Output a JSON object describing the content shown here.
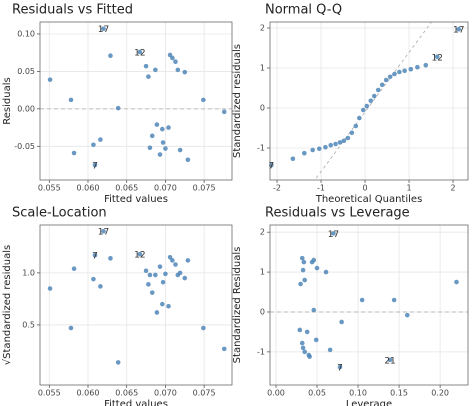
{
  "chart_data": [
    {
      "type": "scatter",
      "title": "Residuals vs Fitted",
      "x_label": "Fitted values",
      "y_label": "Residuals",
      "x": [
        0.0551,
        0.0578,
        0.0582,
        0.0607,
        0.062,
        0.0629,
        0.0639,
        0.0609,
        0.0667,
        0.0675,
        0.0678,
        0.0683,
        0.0687,
        0.0689,
        0.0693,
        0.0696,
        0.0697,
        0.07,
        0.0706,
        0.0709,
        0.0713,
        0.0716,
        0.0719,
        0.0725,
        0.0729,
        0.0749,
        0.0776,
        0.0616,
        0.068,
        0.0704
      ],
      "y": [
        0.039,
        0.012,
        -0.059,
        -0.048,
        0.107,
        0.071,
        0.001,
        -0.075,
        0.076,
        0.057,
        0.043,
        -0.036,
        0.052,
        -0.021,
        -0.061,
        -0.027,
        -0.045,
        -0.053,
        0.072,
        0.068,
        0.063,
        0.052,
        -0.055,
        0.049,
        -0.068,
        0.012,
        -0.004,
        -0.041,
        -0.052,
        -0.025
      ],
      "point_labels": [
        null,
        null,
        null,
        null,
        "17",
        null,
        null,
        "7",
        "12",
        null,
        null,
        null,
        null,
        null,
        null,
        null,
        null,
        null,
        null,
        null,
        null,
        null,
        null,
        null,
        null,
        null,
        null,
        null,
        null,
        null
      ],
      "xlim": [
        0.0538,
        0.0786
      ],
      "ylim": [
        -0.095,
        0.116
      ],
      "xticks": [
        0.055,
        {
          "value": 0.06,
          "label": "0.060"
        },
        0.065,
        {
          "value": 0.07,
          "label": "0.070"
        },
        0.075
      ],
      "yticks": [
        -0.05,
        {
          "value": 0,
          "label": "0.00"
        },
        0.05,
        {
          "value": 0.1,
          "label": "0.10"
        }
      ],
      "hline": 0,
      "color": "#4f86b8",
      "grid": true
    },
    {
      "type": "scatter",
      "title": "Normal Q-Q",
      "x_label": "Theoretical Quantiles",
      "y_label": "Standardized residuals",
      "x": [
        -2.13,
        -1.64,
        -1.38,
        -1.19,
        -1.04,
        -0.9,
        -0.78,
        -0.67,
        -0.57,
        -0.48,
        -0.39,
        -0.3,
        -0.21,
        -0.13,
        -0.04,
        0.04,
        0.13,
        0.21,
        0.3,
        0.39,
        0.48,
        0.57,
        0.67,
        0.78,
        0.9,
        1.04,
        1.19,
        1.38,
        1.64,
        2.13
      ],
      "y": [
        -1.43,
        -1.27,
        -1.13,
        -1.05,
        -1.02,
        -0.98,
        -0.93,
        -0.9,
        -0.86,
        -0.82,
        -0.75,
        -0.62,
        -0.45,
        -0.25,
        -0.05,
        0.05,
        0.18,
        0.3,
        0.45,
        0.58,
        0.7,
        0.78,
        0.85,
        0.9,
        0.93,
        0.97,
        1.02,
        1.07,
        1.28,
        1.97
      ],
      "point_labels": [
        "7",
        null,
        null,
        null,
        null,
        null,
        null,
        null,
        null,
        null,
        null,
        null,
        null,
        null,
        null,
        null,
        null,
        null,
        null,
        null,
        null,
        null,
        null,
        null,
        null,
        null,
        null,
        null,
        "12",
        "17"
      ],
      "xlim": [
        -2.16,
        2.34
      ],
      "ylim": [
        -1.8,
        2.15
      ],
      "xticks": [
        -2,
        -1,
        0,
        1,
        2
      ],
      "yticks": [
        -1,
        0,
        1,
        2
      ],
      "reference_line": {
        "slope": 1.49,
        "intercept": -0.1
      },
      "color": "#4f86b8",
      "grid": true
    },
    {
      "type": "scatter",
      "title": "Scale-Location",
      "x_label": "Fitted values",
      "y_label": "√Standardized residuals",
      "x": [
        0.0551,
        0.0578,
        0.0582,
        0.0607,
        0.062,
        0.0629,
        0.0639,
        0.0609,
        0.0667,
        0.0675,
        0.0678,
        0.0683,
        0.0687,
        0.0689,
        0.0693,
        0.0696,
        0.0697,
        0.07,
        0.0706,
        0.0709,
        0.0713,
        0.0716,
        0.0719,
        0.0725,
        0.0729,
        0.0749,
        0.0776,
        0.0616,
        0.068,
        0.0704
      ],
      "y": [
        0.85,
        0.47,
        1.04,
        0.94,
        1.4,
        1.14,
        0.14,
        1.17,
        1.18,
        1.02,
        0.89,
        0.81,
        0.98,
        0.62,
        1.06,
        0.7,
        0.91,
        0.99,
        1.15,
        1.12,
        1.08,
        0.98,
        1.0,
        0.95,
        1.12,
        0.47,
        0.27,
        0.87,
        0.98,
        0.68
      ],
      "point_labels": [
        null,
        null,
        null,
        null,
        "17",
        null,
        null,
        "7",
        "12",
        null,
        null,
        null,
        null,
        null,
        null,
        null,
        null,
        null,
        null,
        null,
        null,
        null,
        null,
        null,
        null,
        null,
        null,
        null,
        null,
        null
      ],
      "xlim": [
        0.0538,
        0.0786
      ],
      "ylim": [
        -0.077,
        1.46
      ],
      "xticks": [
        0.055,
        {
          "value": 0.06,
          "label": "0.060"
        },
        0.065,
        {
          "value": 0.07,
          "label": "0.070"
        },
        0.075
      ],
      "yticks": [
        0.5,
        {
          "value": 1,
          "label": "1.0"
        }
      ],
      "color": "#4f86b8",
      "grid": true
    },
    {
      "type": "scatter",
      "title": "Residuals vs Leverage",
      "x_label": "Leverage",
      "y_label": "Standardized Residuals",
      "x": [
        0.032,
        0.034,
        0.033,
        0.035,
        0.03,
        0.029,
        0.032,
        0.033,
        0.035,
        0.038,
        0.04,
        0.041,
        0.044,
        0.046,
        0.05,
        0.046,
        0.049,
        0.07,
        0.061,
        0.066,
        0.08,
        0.078,
        0.105,
        0.144,
        0.16,
        0.139,
        0.22
      ],
      "y": [
        1.35,
        1.25,
        1.05,
        0.8,
        0.7,
        -0.45,
        -0.78,
        -0.9,
        -1.0,
        -0.5,
        -1.08,
        -1.12,
        1.25,
        1.3,
        1.1,
        0.05,
        -0.7,
        1.97,
        1.0,
        -0.95,
        -0.25,
        -1.38,
        0.3,
        0.3,
        -0.08,
        -1.2,
        0.75
      ],
      "point_labels": [
        null,
        null,
        null,
        null,
        null,
        null,
        null,
        null,
        null,
        null,
        null,
        null,
        null,
        null,
        null,
        null,
        null,
        "17",
        null,
        null,
        null,
        "7",
        null,
        null,
        null,
        "21",
        null
      ],
      "xlim": [
        -0.0073,
        0.234
      ],
      "ylim": [
        -1.83,
        2.18
      ],
      "xticks": [
        {
          "value": 0,
          "label": "0.00"
        },
        0.05,
        {
          "value": 0.1,
          "label": "0.10"
        },
        0.15,
        {
          "value": 0.2,
          "label": "0.20"
        }
      ],
      "yticks": [
        -1,
        0,
        1,
        2
      ],
      "hline": 0,
      "color": "#4f86b8",
      "grid": true
    }
  ]
}
